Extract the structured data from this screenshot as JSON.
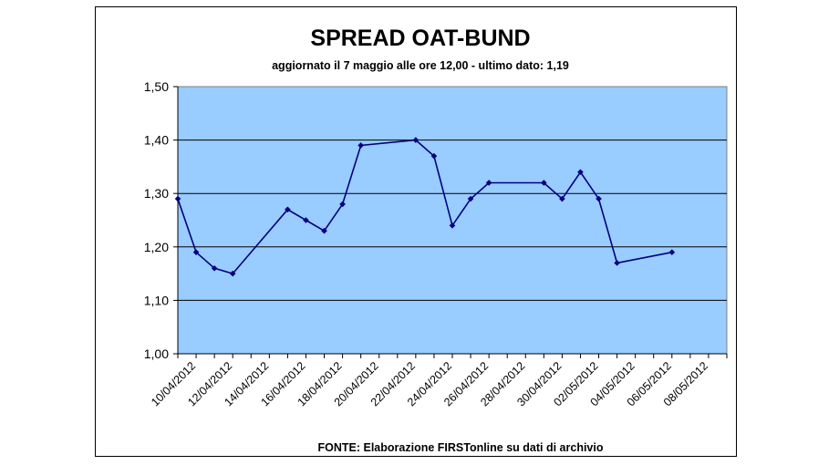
{
  "chart_data": {
    "type": "line",
    "title": "SPREAD OAT-BUND",
    "subtitle": "aggiornato il 7 maggio  alle ore 12,00 - ultimo dato: 1,19",
    "source": "FONTE: Elaborazione FIRSTonline su dati di archivio",
    "xlabel": "",
    "ylabel": "",
    "ylim": [
      1.0,
      1.5
    ],
    "y_ticks": [
      "1,00",
      "1,10",
      "1,20",
      "1,30",
      "1,40",
      "1,50"
    ],
    "x_ticks": [
      "10/04/2012",
      "12/04/2012",
      "14/04/2012",
      "16/04/2012",
      "18/04/2012",
      "20/04/2012",
      "22/04/2012",
      "24/04/2012",
      "26/04/2012",
      "28/04/2012",
      "30/04/2012",
      "02/05/2012",
      "04/05/2012",
      "06/05/2012",
      "08/05/2012"
    ],
    "xlim": [
      "2012-04-09",
      "2012-05-09"
    ],
    "grid": true,
    "plot_background": "#99CCFF",
    "line_color": "#000080",
    "series": [
      {
        "points": [
          {
            "x": "2012-04-09",
            "y": 1.29
          },
          {
            "x": "2012-04-10",
            "y": 1.19
          },
          {
            "x": "2012-04-11",
            "y": 1.16
          },
          {
            "x": "2012-04-12",
            "y": 1.15
          },
          {
            "x": "2012-04-15",
            "y": 1.27
          },
          {
            "x": "2012-04-16",
            "y": 1.25
          },
          {
            "x": "2012-04-17",
            "y": 1.23
          },
          {
            "x": "2012-04-18",
            "y": 1.28
          },
          {
            "x": "2012-04-19",
            "y": 1.39
          },
          {
            "x": "2012-04-22",
            "y": 1.4
          },
          {
            "x": "2012-04-23",
            "y": 1.37
          },
          {
            "x": "2012-04-24",
            "y": 1.24
          },
          {
            "x": "2012-04-25",
            "y": 1.29
          },
          {
            "x": "2012-04-26",
            "y": 1.32
          },
          {
            "x": "2012-04-29",
            "y": 1.32
          },
          {
            "x": "2012-04-30",
            "y": 1.29
          },
          {
            "x": "2012-05-01",
            "y": 1.34
          },
          {
            "x": "2012-05-02",
            "y": 1.29
          },
          {
            "x": "2012-05-03",
            "y": 1.17
          },
          {
            "x": "2012-05-06",
            "y": 1.19
          }
        ]
      }
    ]
  }
}
